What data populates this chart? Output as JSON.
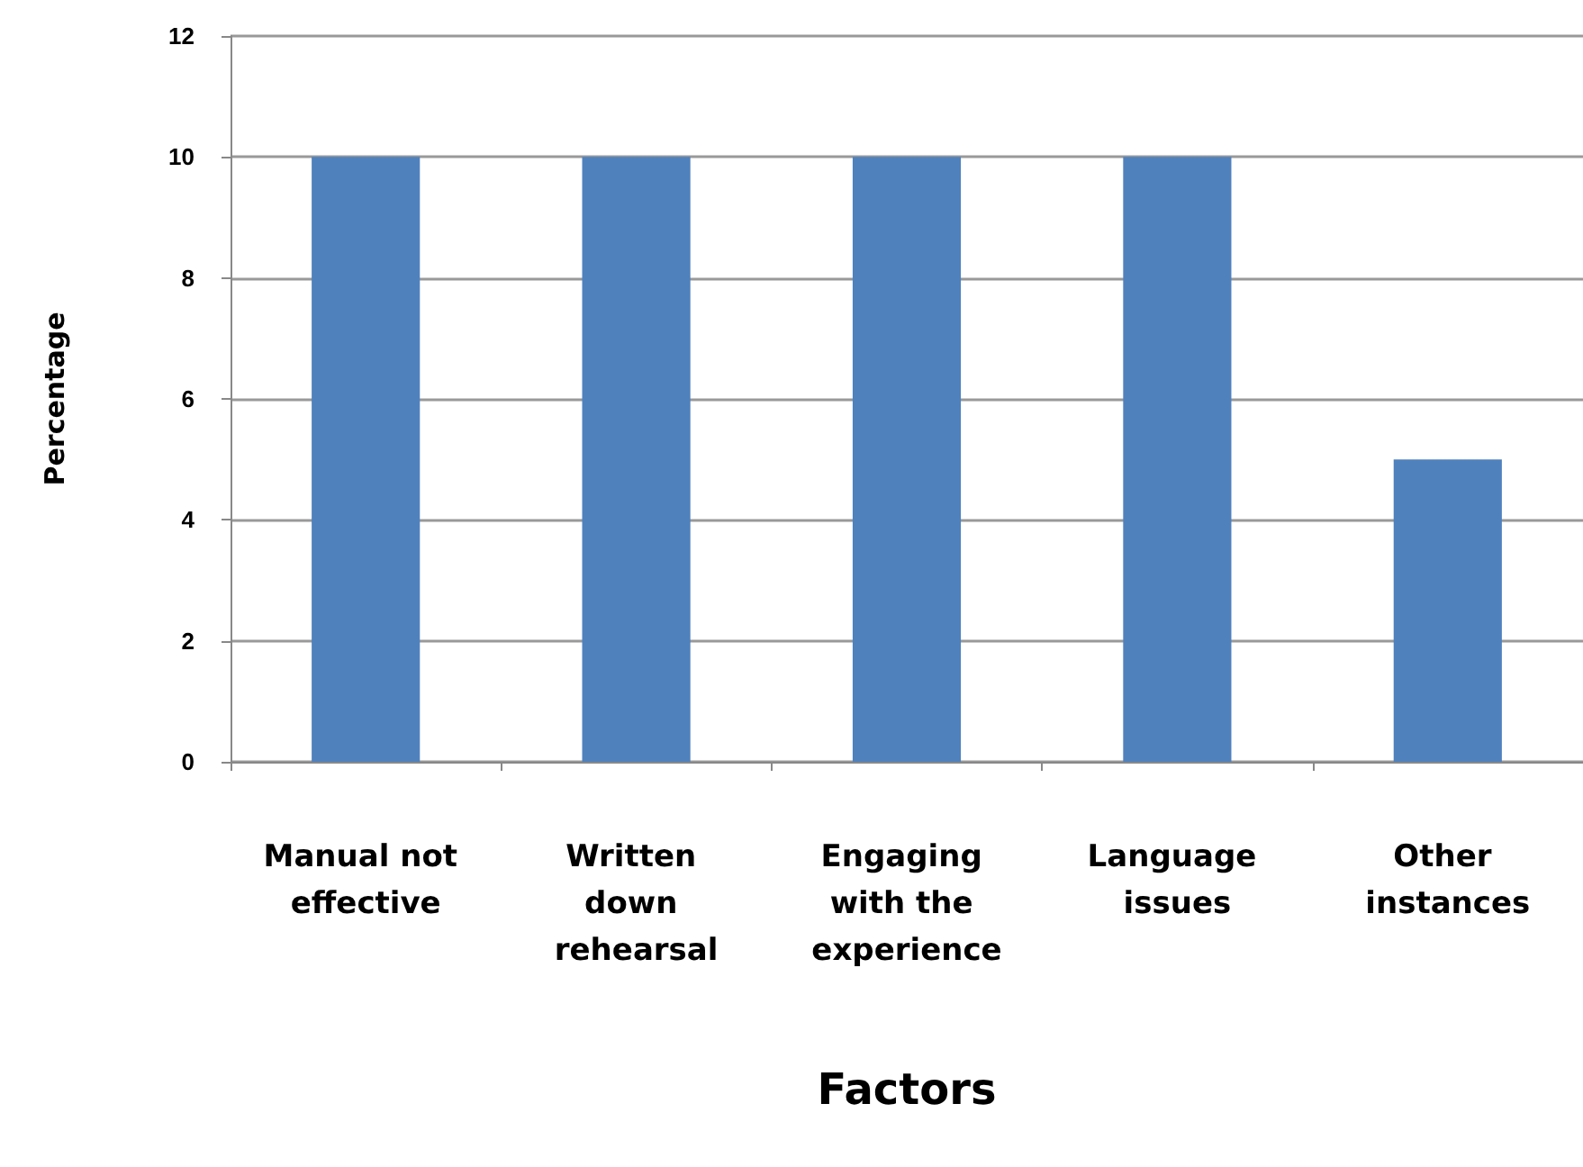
{
  "chart_data": {
    "type": "bar",
    "xlabel": "Factors",
    "ylabel": "Percentage",
    "categories": [
      "Manual not effective",
      "Written down rehearsal",
      "Engaging with the experience",
      "Language issues",
      "Other instances"
    ],
    "values": [
      10,
      10,
      10,
      10,
      5
    ],
    "color": "#4f81bd",
    "ylim": [
      0,
      12
    ],
    "yticks": [
      0,
      2,
      4,
      6,
      8,
      10,
      12
    ],
    "grid": "y"
  }
}
